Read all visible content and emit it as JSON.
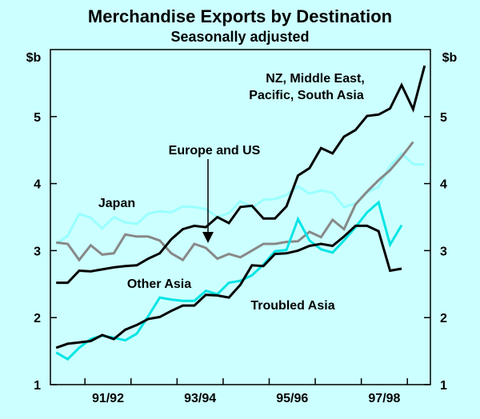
{
  "chart_data": {
    "type": "line",
    "title": "Merchandise Exports by Destination",
    "subtitle": "Seasonally adjusted",
    "y_unit_left": "$b",
    "y_unit_right": "$b",
    "ylim": [
      1,
      6
    ],
    "yticks": [
      "1",
      "2",
      "3",
      "4",
      "5"
    ],
    "x_range": [
      1990.25,
      1998.5
    ],
    "xtick_labels": [
      "91/92",
      "93/94",
      "95/96",
      "97/98"
    ],
    "xticks": [
      1991.5,
      1993.5,
      1995.5,
      1997.5
    ],
    "grid": false,
    "colors": {
      "background": "#CCFFFF",
      "axes": "#000000",
      "nz_middle_east": "#000000",
      "japan": "#99FFFF",
      "europe_us": "#888888",
      "other_asia": "#00E5E5",
      "troubled_asia": "#000000"
    },
    "annotations": {
      "nz_middle_east": [
        "NZ, Middle East,",
        "Pacific, South Asia"
      ],
      "europe_us": "Europe and US",
      "japan": "Japan",
      "other_asia": "Other Asia",
      "troubled_asia": "Troubled Asia"
    },
    "series": [
      {
        "key": "nz_middle_east",
        "start": 1990.375,
        "step": 0.25,
        "values": [
          2.52,
          2.52,
          2.7,
          2.69,
          2.72,
          2.75,
          2.77,
          2.78,
          2.88,
          2.96,
          3.17,
          3.32,
          3.37,
          3.35,
          3.5,
          3.41,
          3.65,
          3.67,
          3.48,
          3.48,
          3.66,
          4.12,
          4.23,
          4.53,
          4.45,
          4.7,
          4.8,
          5.01,
          5.03,
          5.12,
          5.47,
          5.11,
          5.76
        ]
      },
      {
        "key": "japan",
        "start": 1990.375,
        "step": 0.25,
        "values": [
          3.1,
          3.22,
          3.55,
          3.49,
          3.33,
          3.5,
          3.42,
          3.4,
          3.55,
          3.59,
          3.57,
          3.66,
          3.65,
          3.62,
          3.5,
          3.56,
          3.74,
          3.64,
          3.76,
          3.77,
          3.83,
          3.96,
          3.85,
          3.9,
          3.86,
          3.65,
          3.7,
          3.87,
          3.95,
          4.26,
          4.45,
          4.29,
          4.28
        ]
      },
      {
        "key": "europe_us",
        "start": 1990.375,
        "step": 0.25,
        "values": [
          3.12,
          3.1,
          2.86,
          3.08,
          2.94,
          2.96,
          3.24,
          3.21,
          3.21,
          3.15,
          2.96,
          2.86,
          3.1,
          3.04,
          2.88,
          2.95,
          2.9,
          3.0,
          3.1,
          3.1,
          3.13,
          3.14,
          3.28,
          3.2,
          3.46,
          3.32,
          3.69,
          3.88,
          4.05,
          4.2,
          4.4,
          4.62,
          null
        ]
      },
      {
        "key": "other_asia",
        "start": 1990.375,
        "step": 0.25,
        "values": [
          1.48,
          1.38,
          1.55,
          1.68,
          1.73,
          1.7,
          1.66,
          1.76,
          2.02,
          2.3,
          2.27,
          2.25,
          2.25,
          2.4,
          2.35,
          2.52,
          2.55,
          2.63,
          2.79,
          2.99,
          3.01,
          3.47,
          3.15,
          3.02,
          2.97,
          3.15,
          3.35,
          3.57,
          3.72,
          3.09,
          3.38,
          null,
          null
        ]
      },
      {
        "key": "troubled_asia",
        "start": 1990.375,
        "step": 0.25,
        "values": [
          1.55,
          1.61,
          1.63,
          1.65,
          1.74,
          1.68,
          1.82,
          1.89,
          1.98,
          2.01,
          2.1,
          2.18,
          2.18,
          2.34,
          2.33,
          2.3,
          2.49,
          2.78,
          2.77,
          2.95,
          2.96,
          3.0,
          3.07,
          3.1,
          3.07,
          3.21,
          3.37,
          3.37,
          3.29,
          2.7,
          2.73,
          null,
          null
        ]
      }
    ]
  }
}
